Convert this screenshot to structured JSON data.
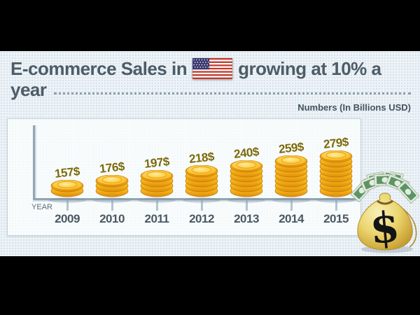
{
  "header": {
    "title_before_flag": "E-commerce Sales in",
    "title_after_flag": "growing at 10% a",
    "title_line2": "year",
    "subtitle": "Numbers (In Billions USD)"
  },
  "chart_data": {
    "type": "bar",
    "pictogram": "coin-stack",
    "title": "E-commerce Sales in USA growing at 10% a year",
    "categories": [
      "2009",
      "2010",
      "2011",
      "2012",
      "2013",
      "2014",
      "2015"
    ],
    "values": [
      157,
      176,
      197,
      218,
      240,
      259,
      279
    ],
    "value_labels": [
      "157$",
      "176$",
      "197$",
      "218$",
      "240$",
      "259$",
      "279$"
    ],
    "coin_counts": [
      2,
      3,
      4,
      5,
      6,
      7,
      8
    ],
    "xlabel": "YEAR",
    "ylabel": "Numbers (In Billions USD)",
    "unit": "Billions USD",
    "grid": false,
    "legend_position": "none"
  },
  "icons": {
    "flag": "us-flag",
    "money_bag": "money-bag",
    "coin": "coin-stack"
  },
  "colors": {
    "letterbox": "#000000",
    "background": "#edf3f7",
    "title_text": "#4d5c67",
    "value_text": "#7c6a0a",
    "axis": "#92a6b1",
    "coin_gold": "#f5b91c",
    "bag_gold": "#e3c95e",
    "bill_green": "#5d9465"
  }
}
